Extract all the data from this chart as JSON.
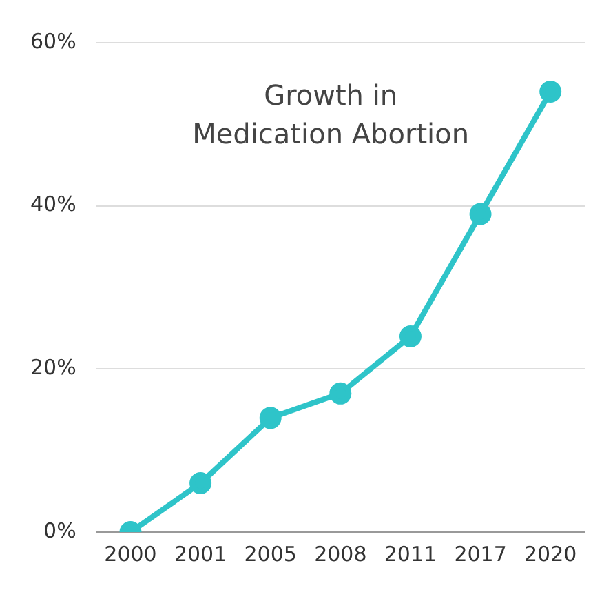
{
  "chart_data": {
    "type": "line",
    "title": "Growth in\nMedication Abortion",
    "categories": [
      "2000",
      "2001",
      "2005",
      "2008",
      "2011",
      "2017",
      "2020"
    ],
    "series": [
      {
        "color": "#2ec4c9",
        "values": [
          0,
          6,
          14,
          17,
          24,
          39,
          54
        ]
      }
    ],
    "ylim": [
      0,
      60
    ],
    "yticks": [
      {
        "value": 0,
        "label": "0%"
      },
      {
        "value": 20,
        "label": "20%"
      },
      {
        "value": 40,
        "label": "40%"
      },
      {
        "value": 60,
        "label": "60%"
      }
    ],
    "grid": "y",
    "legend": false,
    "marker": "circle",
    "line_style": "solid"
  }
}
